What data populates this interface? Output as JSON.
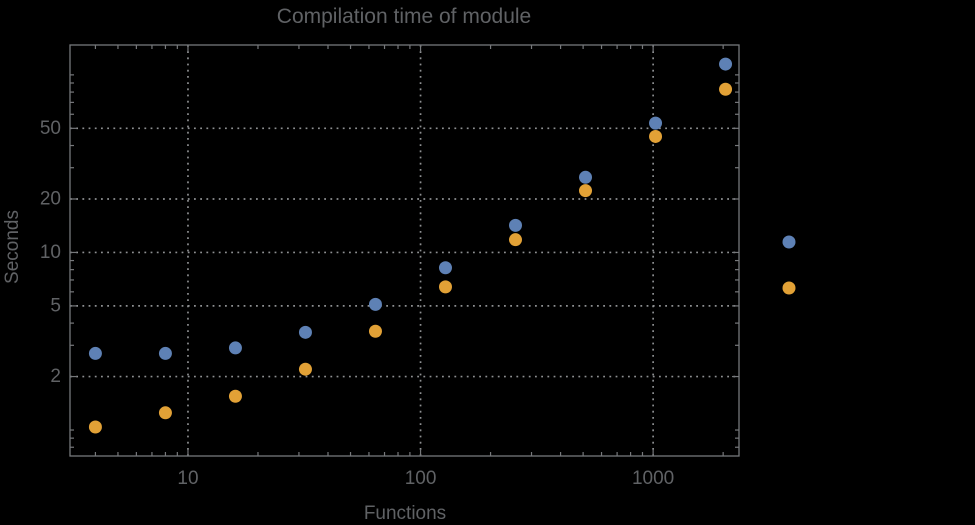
{
  "chart_data": {
    "type": "scatter",
    "title": "Compilation time of module",
    "xlabel": "Functions",
    "ylabel": "Seconds",
    "xscale": "log",
    "yscale": "log",
    "xlim": [
      3.11,
      2340
    ],
    "ylim": [
      0.714,
      147.3
    ],
    "grid": "dotted lines at labeled major ticks only",
    "legend_position": "outside-right of frame, markers only (no visible label text)",
    "x_ticks": [
      {
        "value": 10,
        "label": "10"
      },
      {
        "value": 100,
        "label": "100"
      },
      {
        "value": 1000,
        "label": "1000"
      }
    ],
    "y_ticks": [
      {
        "value": 2,
        "label": "2"
      },
      {
        "value": 5,
        "label": "5"
      },
      {
        "value": 10,
        "label": "10"
      },
      {
        "value": 20,
        "label": "20"
      },
      {
        "value": 50,
        "label": "50"
      }
    ],
    "x_minor_ticks": [
      4,
      5,
      6,
      7,
      8,
      9,
      20,
      30,
      40,
      50,
      60,
      70,
      80,
      90,
      200,
      300,
      400,
      500,
      600,
      700,
      800,
      900,
      2000
    ],
    "y_minor_ticks": [
      0.8,
      0.9,
      1,
      3,
      4,
      6,
      7,
      8,
      9,
      30,
      40,
      60,
      70,
      80,
      90,
      100
    ],
    "series": [
      {
        "name": "series-blue",
        "color": "#5e81b5",
        "x": [
          4,
          8,
          16,
          32,
          64,
          128,
          256,
          512,
          1024,
          2048
        ],
        "y": [
          2.7,
          2.7,
          2.9,
          3.55,
          5.1,
          8.2,
          14.2,
          26.5,
          53.5,
          115
        ]
      },
      {
        "name": "series-orange",
        "color": "#e2a136",
        "x": [
          4,
          8,
          16,
          32,
          64,
          128,
          256,
          512,
          1024,
          2048
        ],
        "y": [
          1.04,
          1.25,
          1.55,
          2.2,
          3.6,
          6.4,
          11.8,
          22.3,
          45,
          83
        ]
      }
    ],
    "legend": {
      "items": [
        {
          "marker": "disk",
          "color": "#5e81b5"
        },
        {
          "marker": "disk",
          "color": "#e2a136"
        }
      ]
    },
    "colors": {
      "background": "#000000",
      "frame": "#76787b",
      "gridline": "#8e9092",
      "text": "#606265"
    }
  }
}
